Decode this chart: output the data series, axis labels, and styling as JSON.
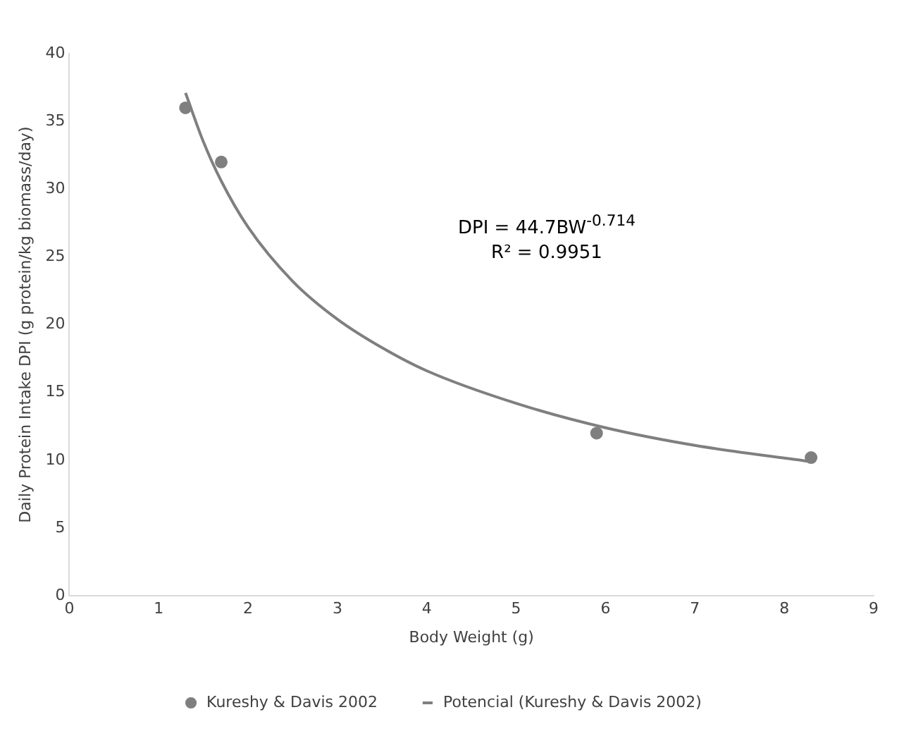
{
  "chart_data": {
    "type": "scatter",
    "xlabel": "Body Weight (g)",
    "ylabel": "Daily Protein Intake DPI (g protein/kg biomass/day)",
    "series": [
      {
        "name": "Kureshy & Davis 2002",
        "type": "scatter",
        "marker": "circle",
        "color": "#7f7f7f",
        "x": [
          1.3,
          1.7,
          5.9,
          8.3
        ],
        "values": [
          36,
          32,
          12,
          10.2
        ]
      },
      {
        "name": "Potencial (Kureshy & Davis 2002)",
        "type": "line",
        "color": "#7f7f7f",
        "x": [
          1.3,
          1.5,
          1.7,
          2,
          2.5,
          3,
          3.5,
          4,
          5,
          6,
          7,
          8.3
        ],
        "values": [
          37.1,
          33.5,
          30.6,
          27.2,
          23.2,
          20.4,
          18.3,
          16.6,
          14.2,
          12.4,
          11.1,
          9.9
        ]
      }
    ],
    "annotations": [
      "DPI = 44.7BW$^{-0.714}$",
      "R² = 0.9951"
    ],
    "xlim": [
      0,
      9
    ],
    "xticks": [
      0,
      1,
      2,
      3,
      4,
      5,
      6,
      7,
      8,
      9
    ],
    "ylim": [
      0,
      40
    ],
    "yticks": [
      0,
      5,
      10,
      15,
      20,
      25,
      30,
      35,
      40
    ],
    "grid": false,
    "legend": "bottom"
  }
}
